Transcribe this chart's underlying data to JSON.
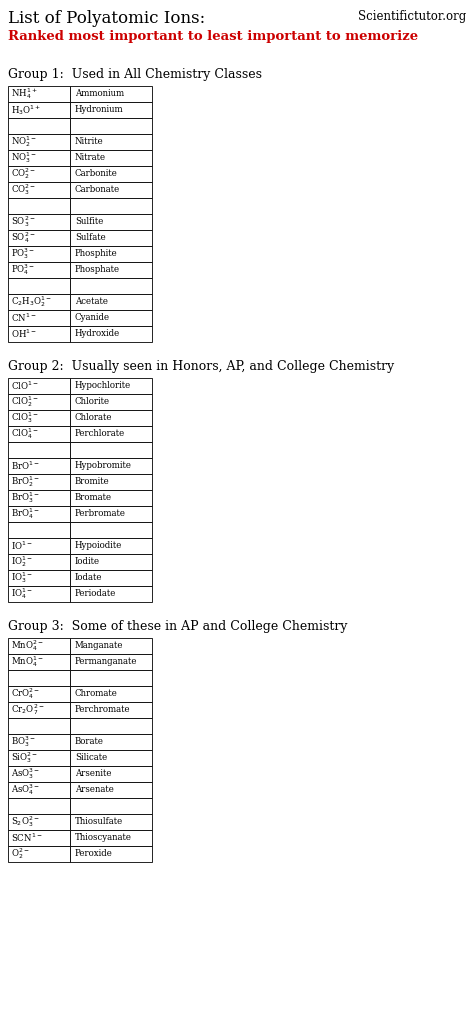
{
  "title": "List of Polyatomic Ions:",
  "subtitle": "Ranked most important to least important to memorize",
  "website": "Scientifictutor.org",
  "group1_header": "Group 1:  Used in All Chemistry Classes",
  "group2_header": "Group 2:  Usually seen in Honors, AP, and College Chemistry",
  "group3_header": "Group 3:  Some of these in AP and College Chemistry",
  "group1": [
    [
      "NH$_4^{1+}$",
      "Ammonium"
    ],
    [
      "H$_3$O$^{1+}$",
      "Hydronium"
    ],
    [
      "",
      ""
    ],
    [
      "NO$_2^{1-}$",
      "Nitrite"
    ],
    [
      "NO$_3^{1-}$",
      "Nitrate"
    ],
    [
      "CO$_2^{2-}$",
      "Carbonite"
    ],
    [
      "CO$_3^{2-}$",
      "Carbonate"
    ],
    [
      "",
      ""
    ],
    [
      "SO$_3^{2-}$",
      "Sulfite"
    ],
    [
      "SO$_4^{2-}$",
      "Sulfate"
    ],
    [
      "PO$_3^{3-}$",
      "Phosphite"
    ],
    [
      "PO$_4^{3-}$",
      "Phosphate"
    ],
    [
      "",
      ""
    ],
    [
      "C$_2$H$_3$O$_2^{1-}$",
      "Acetate"
    ],
    [
      "CN$^{1-}$",
      "Cyanide"
    ],
    [
      "OH$^{1-}$",
      "Hydroxide"
    ]
  ],
  "group2": [
    [
      "ClO$^{1-}$",
      "Hypochlorite"
    ],
    [
      "ClO$_2^{1-}$",
      "Chlorite"
    ],
    [
      "ClO$_3^{1-}$",
      "Chlorate"
    ],
    [
      "ClO$_4^{1-}$",
      "Perchlorate"
    ],
    [
      "",
      ""
    ],
    [
      "BrO$^{1-}$",
      "Hypobromite"
    ],
    [
      "BrO$_2^{1-}$",
      "Bromite"
    ],
    [
      "BrO$_3^{1-}$",
      "Bromate"
    ],
    [
      "BrO$_4^{1-}$",
      "Perbromate"
    ],
    [
      "",
      ""
    ],
    [
      "IO$^{1-}$",
      "Hypoiodite"
    ],
    [
      "IO$_2^{1-}$",
      "Iodite"
    ],
    [
      "IO$_3^{1-}$",
      "Iodate"
    ],
    [
      "IO$_4^{1-}$",
      "Periodate"
    ]
  ],
  "group3": [
    [
      "MnO$_4^{2-}$",
      "Manganate"
    ],
    [
      "MnO$_4^{1-}$",
      "Permanganate"
    ],
    [
      "",
      ""
    ],
    [
      "CrO$_4^{2-}$",
      "Chromate"
    ],
    [
      "Cr$_2$O$_7^{2-}$",
      "Perchromate"
    ],
    [
      "",
      ""
    ],
    [
      "BO$_3^{3-}$",
      "Borate"
    ],
    [
      "SiO$_3^{2-}$",
      "Silicate"
    ],
    [
      "AsO$_3^{3-}$",
      "Arsenite"
    ],
    [
      "AsO$_4^{3-}$",
      "Arsenate"
    ],
    [
      "",
      ""
    ],
    [
      "S$_2$O$_3^{2-}$",
      "Thiosulfate"
    ],
    [
      "SCN$^{1-}$",
      "Thioscyanate"
    ],
    [
      "O$_2^{2-}$",
      "Peroxide"
    ]
  ],
  "bg_color": "#ffffff",
  "title_color": "#000000",
  "subtitle_color": "#cc0000",
  "header_color": "#000000",
  "cell_text_color": "#000000"
}
